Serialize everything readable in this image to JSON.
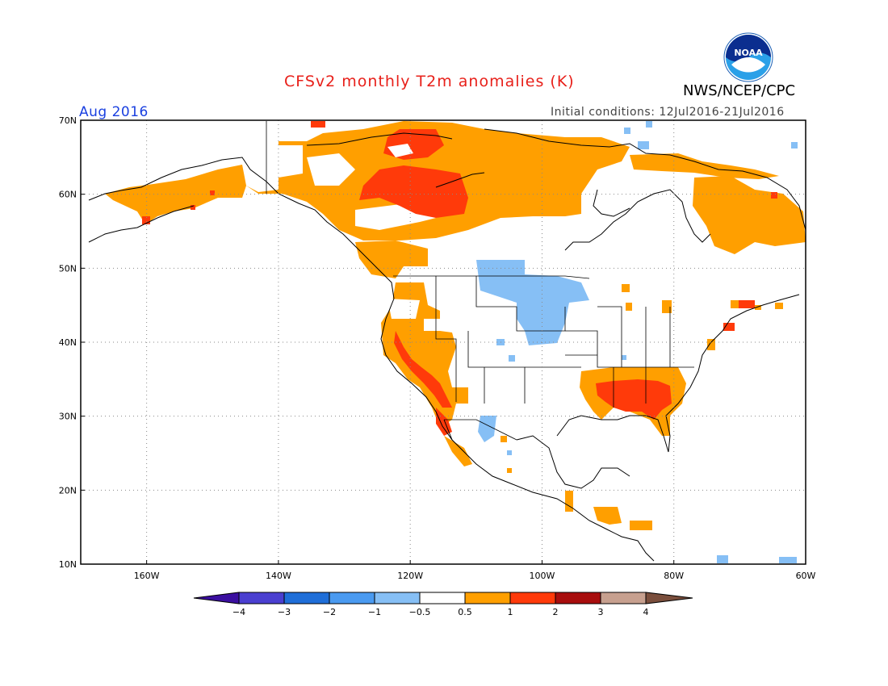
{
  "header": {
    "title": "CFSv2 monthly T2m anomalies (K)",
    "agency": "NWS/NCEP/CPC",
    "logo_text": "NOAA",
    "valid_month": "Aug 2016",
    "initial_conditions": "Initial conditions: 12Jul2016-21Jul2016"
  },
  "colors": {
    "title": "#e8201a",
    "valid_month": "#1a40e0",
    "land_outline": "#000000",
    "grid": "#8a8a8a"
  },
  "map": {
    "lat_labels": [
      "70N",
      "60N",
      "50N",
      "40N",
      "30N",
      "20N",
      "10N"
    ],
    "lon_labels": [
      "160W",
      "140W",
      "120W",
      "100W",
      "80W",
      "60W"
    ],
    "lat_range": [
      10,
      70
    ],
    "lon_range": [
      -170,
      -60
    ]
  },
  "colorbar": {
    "labels": [
      "-4",
      "-3",
      "-2",
      "-1",
      "-0.5",
      "0.5",
      "1",
      "2",
      "3",
      "4"
    ],
    "colors": [
      "#3b0fa0",
      "#4a3fd0",
      "#1f6ed8",
      "#4a9af0",
      "#86bff5",
      "#ffffff",
      "#ff9f00",
      "#ff3a0a",
      "#a80d0d",
      "#c7a08f",
      "#7a4e3c"
    ]
  },
  "anomaly_regions": [
    {
      "name": "alaska-west",
      "category": "0.5"
    },
    {
      "name": "alaska-hotspot",
      "category": "1"
    },
    {
      "name": "canada-north",
      "category": "0.5"
    },
    {
      "name": "canada-hotspot",
      "category": "1"
    },
    {
      "name": "labrador",
      "category": "0.5"
    },
    {
      "name": "us-west",
      "category": "0.5"
    },
    {
      "name": "us-southwest-hot",
      "category": "1"
    },
    {
      "name": "us-southeast",
      "category": "0.5"
    },
    {
      "name": "us-southeast-hot",
      "category": "1"
    },
    {
      "name": "northern-plains-cool",
      "category": "-0.5"
    },
    {
      "name": "mexico-cool",
      "category": "-0.5"
    },
    {
      "name": "central-america",
      "category": "0.5"
    },
    {
      "name": "new-england",
      "category": "1"
    }
  ]
}
